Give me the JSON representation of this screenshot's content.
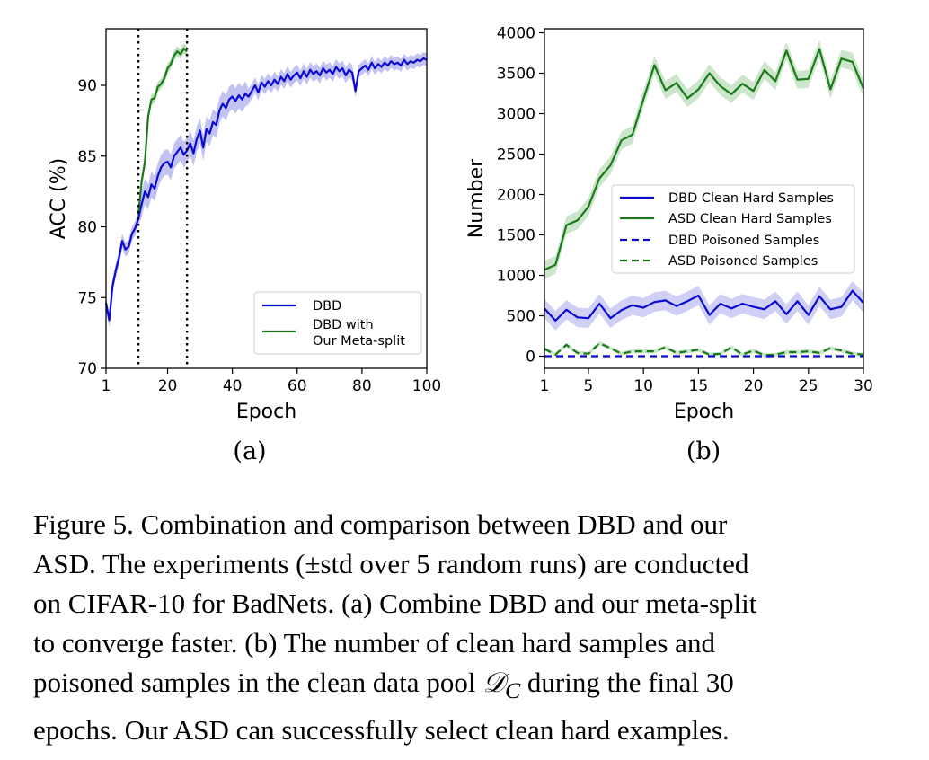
{
  "figure": {
    "panels": [
      "(a)",
      "(b)"
    ]
  },
  "caption": {
    "lines": [
      "Figure 5.  Combination and comparison between DBD and our",
      "ASD. The experiments (±std over 5 random runs) are conducted",
      "on CIFAR-10 for BadNets. (a) Combine DBD and our meta-split",
      "to converge faster.  (b) The number of clean hard samples and",
      "poisoned samples in the clean data pool",
      "during the final 30",
      "epochs. Our ASD can successfully select clean hard examples."
    ],
    "math": "𝒟",
    "math_sub": "C"
  },
  "chart_data": [
    {
      "type": "line",
      "xlabel": "Epoch",
      "ylabel": "ACC (%)",
      "xlim": [
        1,
        100
      ],
      "ylim": [
        70,
        94
      ],
      "xticks": [
        1,
        20,
        40,
        60,
        80,
        100
      ],
      "yticks": [
        70,
        75,
        80,
        85,
        90
      ],
      "vlines": [
        11,
        26
      ],
      "legend_position": "lower-right",
      "colors": {
        "DBD": "#0a0ad0",
        "meta": "#1a7a1a",
        "band_blue": "#a8a8ee",
        "band_green": "#9ccf9c"
      },
      "series": [
        {
          "name": "DBD",
          "x": [
            1,
            2,
            3,
            4,
            5,
            6,
            7,
            8,
            9,
            10,
            11,
            12,
            13,
            14,
            15,
            16,
            17,
            18,
            19,
            20,
            21,
            22,
            23,
            24,
            25,
            26,
            27,
            28,
            29,
            30,
            31,
            32,
            33,
            34,
            35,
            36,
            37,
            38,
            39,
            40,
            41,
            42,
            43,
            44,
            45,
            46,
            47,
            48,
            49,
            50,
            51,
            52,
            53,
            54,
            55,
            56,
            57,
            58,
            59,
            60,
            61,
            62,
            63,
            64,
            65,
            66,
            67,
            68,
            69,
            70,
            71,
            72,
            73,
            74,
            75,
            76,
            77,
            78,
            79,
            80,
            81,
            82,
            83,
            84,
            85,
            86,
            87,
            88,
            89,
            90,
            91,
            92,
            93,
            94,
            95,
            96,
            97,
            98,
            99,
            100
          ],
          "y": [
            74.6,
            73.4,
            75.8,
            76.9,
            77.8,
            79.0,
            78.4,
            78.6,
            79.5,
            79.9,
            80.6,
            81.6,
            82.5,
            82.1,
            83.0,
            82.7,
            83.6,
            84.2,
            84.5,
            84.6,
            84.2,
            85.0,
            85.3,
            85.6,
            85.1,
            85.4,
            85.9,
            85.2,
            86.2,
            86.8,
            85.6,
            86.9,
            86.6,
            87.4,
            87.2,
            88.2,
            88.7,
            88.4,
            89.0,
            89.2,
            88.9,
            89.3,
            89.0,
            89.4,
            89.2,
            89.6,
            90.0,
            89.5,
            90.2,
            89.9,
            90.3,
            90.0,
            90.4,
            90.1,
            90.6,
            90.3,
            90.8,
            90.4,
            90.7,
            90.9,
            90.5,
            91.0,
            90.6,
            91.1,
            90.8,
            91.0,
            90.7,
            91.2,
            90.9,
            91.1,
            90.8,
            91.3,
            91.0,
            91.2,
            90.7,
            91.1,
            90.9,
            89.6,
            91.0,
            91.2,
            91.4,
            91.1,
            91.6,
            91.2,
            91.5,
            91.3,
            91.6,
            91.4,
            91.7,
            91.5,
            91.6,
            91.4,
            91.8,
            91.5,
            91.7,
            91.6,
            91.8,
            91.7,
            91.9,
            91.8
          ]
        },
        {
          "name": "DBD with\nOur Meta-split",
          "x": [
            11,
            12,
            13,
            14,
            15,
            16,
            17,
            18,
            19,
            20,
            21,
            22,
            23,
            24,
            25,
            26
          ],
          "y": [
            80.9,
            83.2,
            84.6,
            87.8,
            89.0,
            89.1,
            89.9,
            90.1,
            90.5,
            91.2,
            91.5,
            92.1,
            92.4,
            92.2,
            92.6,
            92.4
          ]
        }
      ]
    },
    {
      "type": "line",
      "xlabel": "Epoch",
      "ylabel": "Number",
      "xlim": [
        1,
        30
      ],
      "ylim": [
        -150,
        4050
      ],
      "xticks": [
        1,
        5,
        10,
        15,
        20,
        25,
        30
      ],
      "yticks": [
        0,
        500,
        1000,
        1500,
        2000,
        2500,
        3000,
        3500,
        4000
      ],
      "legend_position": "center-right",
      "series": [
        {
          "name": "DBD Clean Hard Samples",
          "x": [
            1,
            2,
            3,
            4,
            5,
            6,
            7,
            8,
            9,
            10,
            11,
            12,
            13,
            14,
            15,
            16,
            17,
            18,
            19,
            20,
            21,
            22,
            23,
            24,
            25,
            26,
            27,
            28,
            29,
            30
          ],
          "y": [
            590,
            440,
            575,
            480,
            470,
            650,
            470,
            570,
            630,
            600,
            670,
            690,
            620,
            680,
            750,
            510,
            650,
            590,
            650,
            610,
            580,
            680,
            520,
            680,
            510,
            740,
            580,
            610,
            810,
            660
          ]
        },
        {
          "name": "ASD Clean Hard Samples",
          "x": [
            1,
            2,
            3,
            4,
            5,
            6,
            7,
            8,
            9,
            10,
            11,
            12,
            13,
            14,
            15,
            16,
            17,
            18,
            19,
            20,
            21,
            22,
            23,
            24,
            25,
            26,
            27,
            28,
            29,
            30
          ],
          "y": [
            1070,
            1130,
            1620,
            1680,
            1850,
            2200,
            2360,
            2670,
            2740,
            3180,
            3600,
            3290,
            3380,
            3190,
            3300,
            3500,
            3340,
            3240,
            3370,
            3280,
            3540,
            3400,
            3780,
            3420,
            3430,
            3800,
            3300,
            3680,
            3640,
            3310
          ]
        },
        {
          "name": "DBD Poisoned Samples",
          "x": [
            1,
            30
          ],
          "y": [
            0,
            0
          ]
        },
        {
          "name": "ASD Poisoned Samples",
          "x": [
            1,
            2,
            3,
            4,
            5,
            6,
            7,
            8,
            9,
            10,
            11,
            12,
            13,
            14,
            15,
            16,
            17,
            18,
            19,
            20,
            21,
            22,
            23,
            24,
            25,
            26,
            27,
            28,
            29,
            30
          ],
          "y": [
            90,
            20,
            140,
            40,
            30,
            160,
            100,
            30,
            60,
            60,
            60,
            110,
            40,
            60,
            80,
            20,
            30,
            110,
            20,
            70,
            10,
            20,
            50,
            50,
            60,
            40,
            100,
            70,
            30,
            20
          ]
        }
      ]
    }
  ]
}
